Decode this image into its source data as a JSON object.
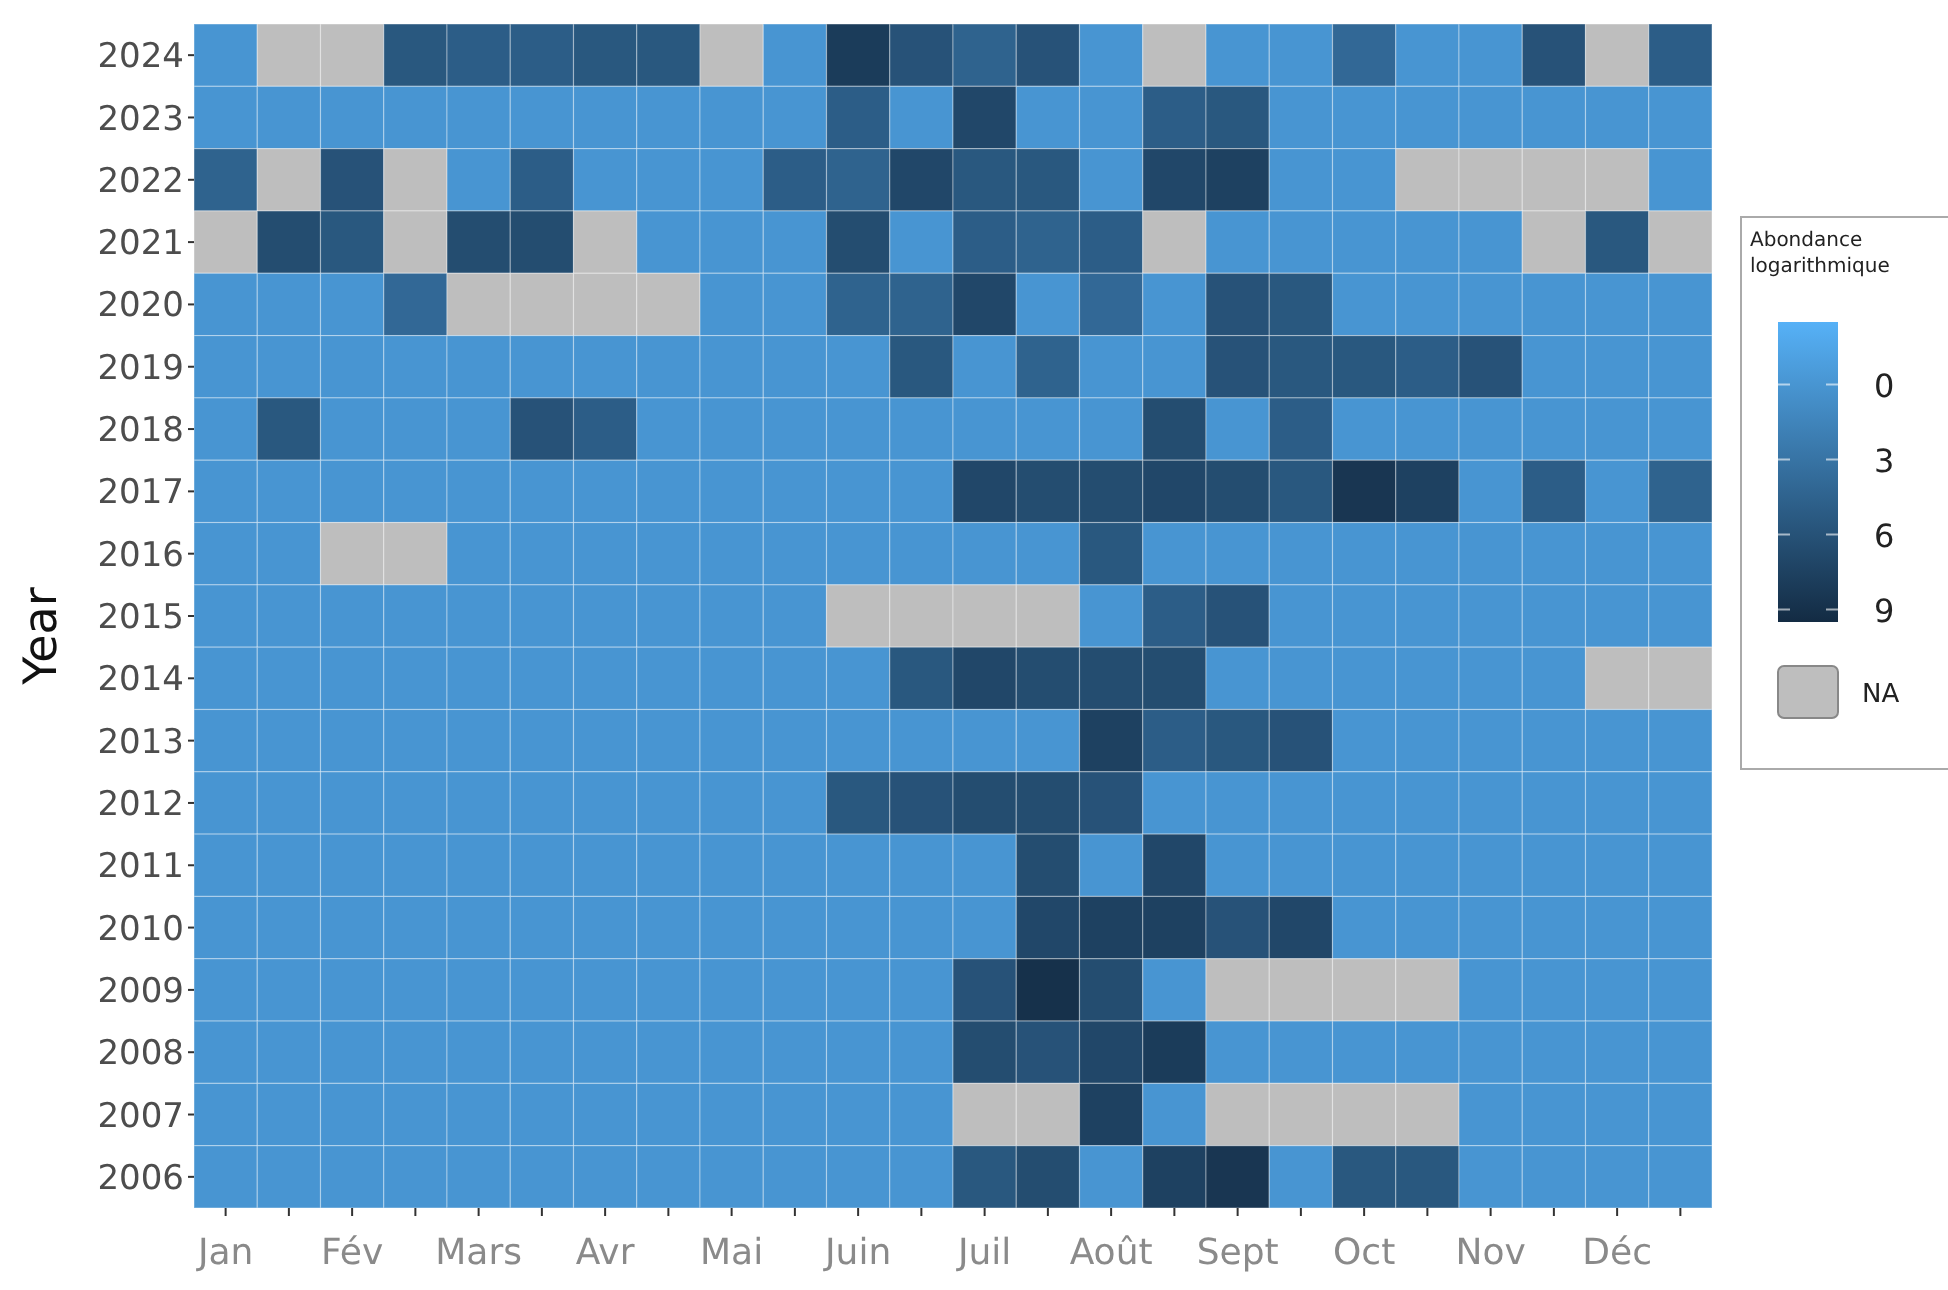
{
  "chart_data": {
    "type": "heatmap",
    "ylabel": "Year",
    "legend_title": "Abondance logarithmique",
    "categories": [
      "Jan",
      null,
      "Fév",
      null,
      "Mars",
      null,
      "Avr",
      null,
      "Mai",
      null,
      "Juin",
      null,
      "Juil",
      null,
      "Août",
      null,
      "Sept",
      null,
      "Oct",
      null,
      "Nov",
      null,
      "Déc",
      null
    ],
    "y_categories": [
      "2024",
      "2023",
      "2022",
      "2021",
      "2020",
      "2019",
      "2018",
      "2017",
      "2016",
      "2015",
      "2014",
      "2013",
      "2012",
      "2011",
      "2010",
      "2009",
      "2008",
      "2007",
      "2006"
    ],
    "cells": [
      [
        0,
        null,
        null,
        5.5,
        5,
        5,
        5.5,
        5.5,
        null,
        0,
        8,
        6,
        4.5,
        6,
        0,
        null,
        0,
        0,
        4,
        0,
        0,
        6,
        null,
        5
      ],
      [
        0,
        0,
        0,
        0,
        0,
        0,
        0,
        0,
        0,
        0,
        5,
        0,
        7,
        0,
        0,
        5,
        5.5,
        0,
        0,
        0,
        0,
        0,
        0,
        0
      ],
      [
        4.5,
        null,
        6,
        null,
        0,
        5,
        0,
        0,
        0,
        5,
        4.5,
        7,
        5.5,
        5.5,
        0,
        7,
        7.5,
        0,
        0,
        null,
        null,
        null,
        null,
        0
      ],
      [
        null,
        6.5,
        5.5,
        null,
        6.5,
        6.5,
        null,
        0,
        0,
        0,
        6.5,
        0,
        5,
        4.5,
        5,
        null,
        0,
        0,
        0,
        0,
        0,
        null,
        5.5,
        null
      ],
      [
        0,
        0,
        0,
        4,
        null,
        null,
        null,
        null,
        0,
        0,
        4.5,
        4.5,
        7,
        0,
        4,
        0,
        6,
        5.5,
        0,
        0,
        0,
        0,
        0,
        0
      ],
      [
        0,
        0,
        0,
        0,
        0,
        0,
        0,
        0,
        0,
        0,
        0,
        5.5,
        0,
        4.5,
        0,
        0,
        6,
        5.5,
        5.5,
        5,
        6,
        0,
        0,
        0
      ],
      [
        0,
        5.5,
        0,
        0,
        0,
        6,
        5,
        0,
        0,
        0,
        0,
        0,
        0,
        0,
        0,
        6.5,
        0,
        5,
        0,
        0,
        0,
        0,
        0,
        0
      ],
      [
        0,
        0,
        0,
        0,
        0,
        0,
        0,
        0,
        0,
        0,
        0,
        0,
        7,
        6.5,
        6.5,
        7,
        6.5,
        5.5,
        8.5,
        7.5,
        0,
        5,
        0,
        4.5
      ],
      [
        0,
        0,
        null,
        null,
        0,
        0,
        0,
        0,
        0,
        0,
        0,
        0,
        0,
        0,
        5.5,
        0,
        0,
        0,
        0,
        0,
        0,
        0,
        0,
        0
      ],
      [
        0,
        0,
        0,
        0,
        0,
        0,
        0,
        0,
        0,
        0,
        null,
        null,
        null,
        null,
        0,
        5,
        6,
        0,
        0,
        0,
        0,
        0,
        0,
        0
      ],
      [
        0,
        0,
        0,
        0,
        0,
        0,
        0,
        0,
        0,
        0,
        0,
        5.5,
        7,
        6.5,
        6.5,
        6.5,
        0,
        0,
        0,
        0,
        0,
        0,
        null,
        null
      ],
      [
        0,
        0,
        0,
        0,
        0,
        0,
        0,
        0,
        0,
        0,
        0,
        0,
        0,
        0,
        7.5,
        5,
        5.5,
        6,
        0,
        0,
        0,
        0,
        0,
        0
      ],
      [
        0,
        0,
        0,
        0,
        0,
        0,
        0,
        0,
        0,
        0,
        5.5,
        6,
        6.5,
        6.5,
        6,
        0,
        0,
        0,
        0,
        0,
        0,
        0,
        0,
        0
      ],
      [
        0,
        0,
        0,
        0,
        0,
        0,
        0,
        0,
        0,
        0,
        0,
        0,
        0,
        6.5,
        0,
        7,
        0,
        0,
        0,
        0,
        0,
        0,
        0,
        0
      ],
      [
        0,
        0,
        0,
        0,
        0,
        0,
        0,
        0,
        0,
        0,
        0,
        0,
        0,
        7,
        7.5,
        7.5,
        6,
        7,
        0,
        0,
        0,
        0,
        0,
        0
      ],
      [
        0,
        0,
        0,
        0,
        0,
        0,
        0,
        0,
        0,
        0,
        0,
        0,
        6,
        9,
        6.5,
        0,
        null,
        null,
        null,
        null,
        0,
        0,
        0,
        0
      ],
      [
        0,
        0,
        0,
        0,
        0,
        0,
        0,
        0,
        0,
        0,
        0,
        0,
        6.5,
        6,
        7,
        8,
        0,
        0,
        0,
        0,
        0,
        0,
        0,
        0
      ],
      [
        0,
        0,
        0,
        0,
        0,
        0,
        0,
        0,
        0,
        0,
        0,
        0,
        null,
        null,
        7.5,
        0,
        null,
        null,
        null,
        null,
        0,
        0,
        0,
        0
      ],
      [
        0,
        0,
        0,
        0,
        0,
        0,
        0,
        0,
        0,
        0,
        0,
        0,
        5.5,
        6.5,
        0,
        7.5,
        8.5,
        0,
        5.5,
        5.5,
        0,
        0,
        0,
        0
      ]
    ],
    "clim": [
      -2.5,
      9.5
    ],
    "cticks": [
      0,
      3,
      6,
      9
    ],
    "annotations": [
      "NA"
    ]
  }
}
